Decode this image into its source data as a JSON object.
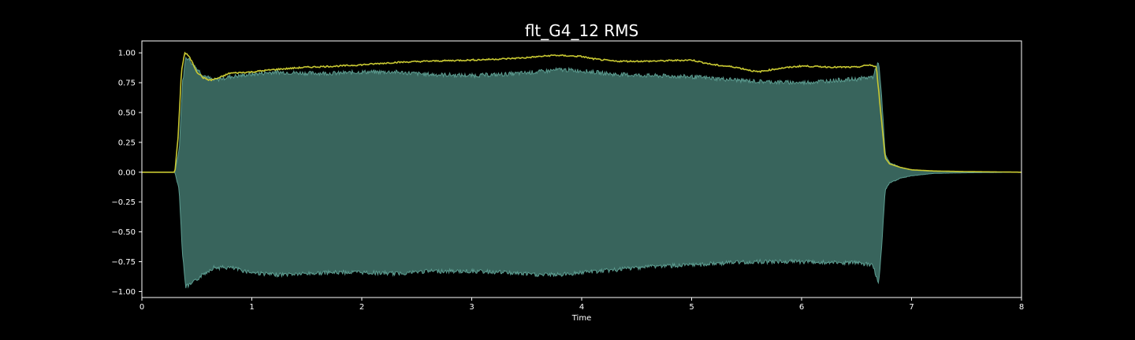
{
  "chart_data": {
    "type": "area",
    "title": "flt_G4_12 RMS",
    "xlabel": "Time",
    "ylabel": "",
    "xlim": [
      0,
      8
    ],
    "ylim": [
      -1.05,
      1.1
    ],
    "grid": false,
    "legend": "none",
    "x_ticks": [
      "0",
      "1",
      "2",
      "3",
      "4",
      "5",
      "6",
      "7",
      "8"
    ],
    "y_ticks": [
      "1.00",
      "0.75",
      "0.50",
      "0.25",
      "0.00",
      "−0.25",
      "−0.50",
      "−0.75",
      "−1.00"
    ],
    "x_tick_values": [
      0,
      1,
      2,
      3,
      4,
      5,
      6,
      7,
      8
    ],
    "y_tick_values": [
      1.0,
      0.75,
      0.5,
      0.25,
      0.0,
      -0.25,
      -0.5,
      -0.75,
      -1.0
    ],
    "series": [
      {
        "kind": "waveform-envelope",
        "color": "#4e8a7f",
        "edge_color": "#5c9c90",
        "x": [
          0,
          0.3,
          0.34,
          0.37,
          0.4,
          0.45,
          0.55,
          0.65,
          0.8,
          1.0,
          1.2,
          1.5,
          1.8,
          2.0,
          2.3,
          2.6,
          3.0,
          3.3,
          3.6,
          3.8,
          4.0,
          4.3,
          4.6,
          5.0,
          5.3,
          5.6,
          6.0,
          6.3,
          6.5,
          6.65,
          6.7,
          6.73,
          6.76,
          6.8,
          6.9,
          7.0,
          7.2,
          7.5,
          8.0
        ],
        "upper": [
          0,
          0,
          0.2,
          0.75,
          0.97,
          0.92,
          0.82,
          0.77,
          0.8,
          0.82,
          0.84,
          0.83,
          0.83,
          0.84,
          0.84,
          0.82,
          0.81,
          0.82,
          0.84,
          0.86,
          0.85,
          0.82,
          0.81,
          0.8,
          0.78,
          0.76,
          0.75,
          0.77,
          0.78,
          0.8,
          0.93,
          0.6,
          0.15,
          0.08,
          0.04,
          0.02,
          0.01,
          0.005,
          0
        ],
        "lower": [
          0,
          0,
          -0.15,
          -0.7,
          -0.96,
          -0.94,
          -0.86,
          -0.8,
          -0.8,
          -0.84,
          -0.86,
          -0.85,
          -0.84,
          -0.84,
          -0.85,
          -0.83,
          -0.83,
          -0.84,
          -0.86,
          -0.86,
          -0.84,
          -0.82,
          -0.79,
          -0.78,
          -0.76,
          -0.75,
          -0.75,
          -0.76,
          -0.76,
          -0.78,
          -0.94,
          -0.6,
          -0.15,
          -0.09,
          -0.05,
          -0.03,
          -0.01,
          -0.005,
          0
        ]
      },
      {
        "kind": "rms-line",
        "color": "#c8c832",
        "x": [
          0,
          0.3,
          0.33,
          0.36,
          0.39,
          0.42,
          0.46,
          0.5,
          0.56,
          0.62,
          0.7,
          0.8,
          1.0,
          1.2,
          1.5,
          1.8,
          2.0,
          2.3,
          2.6,
          3.0,
          3.3,
          3.5,
          3.75,
          4.0,
          4.1,
          4.3,
          4.6,
          5.0,
          5.2,
          5.4,
          5.6,
          5.8,
          6.0,
          6.3,
          6.5,
          6.62,
          6.68,
          6.72,
          6.76,
          6.8,
          6.9,
          7.0,
          7.2,
          7.5,
          8.0
        ],
        "y": [
          0,
          0,
          0.3,
          0.85,
          1.0,
          0.98,
          0.92,
          0.84,
          0.79,
          0.77,
          0.79,
          0.83,
          0.84,
          0.86,
          0.88,
          0.89,
          0.9,
          0.92,
          0.93,
          0.94,
          0.95,
          0.96,
          0.98,
          0.97,
          0.95,
          0.93,
          0.93,
          0.94,
          0.9,
          0.88,
          0.84,
          0.87,
          0.89,
          0.88,
          0.88,
          0.9,
          0.88,
          0.5,
          0.12,
          0.07,
          0.04,
          0.02,
          0.01,
          0.005,
          0
        ]
      }
    ]
  }
}
